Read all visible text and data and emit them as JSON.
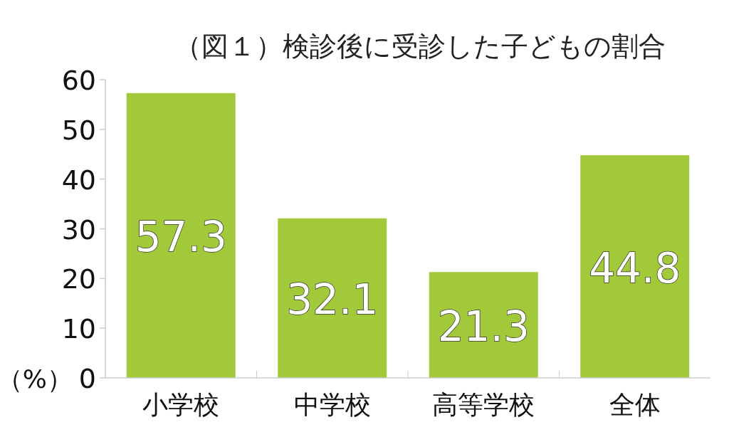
{
  "chart_data": {
    "type": "bar",
    "title": "（図１）検診後に受診した子どもの割合",
    "ylabel": "（%）",
    "categories": [
      "小学校",
      "中学校",
      "高等学校",
      "全体"
    ],
    "values": [
      57.3,
      32.1,
      21.3,
      44.8
    ],
    "color": "#a2c93a",
    "ylim": [
      0,
      60
    ],
    "yticks": [
      0,
      10,
      20,
      30,
      40,
      50,
      60
    ],
    "data_labels": true,
    "grid": false
  }
}
